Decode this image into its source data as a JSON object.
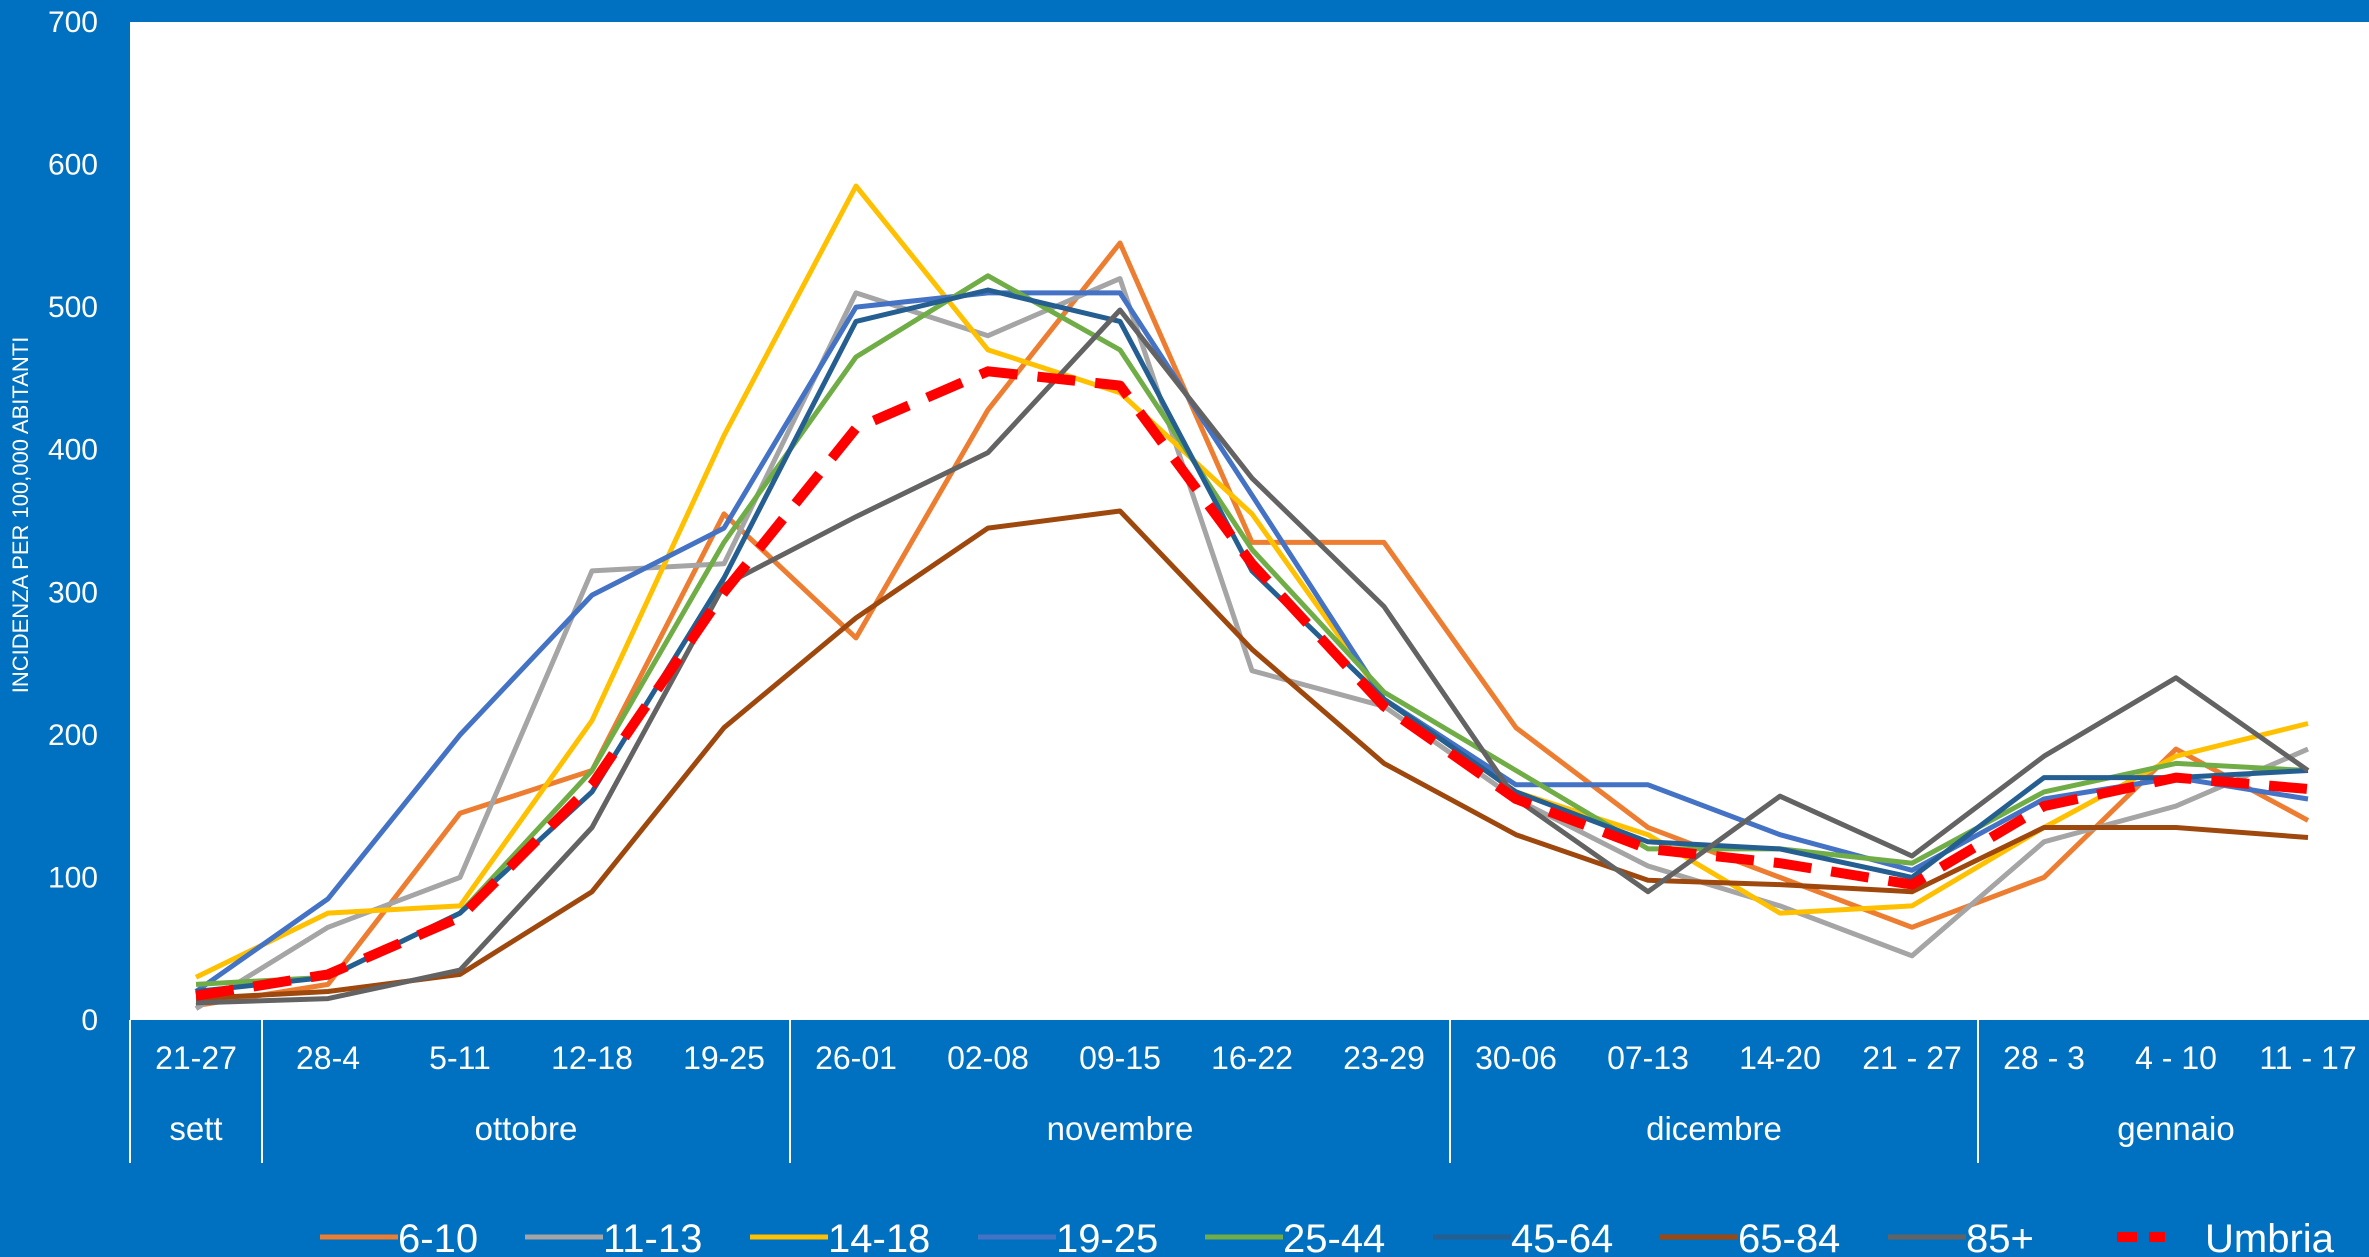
{
  "chart_data": {
    "type": "line",
    "title": "",
    "ylabel": "INCIDENZA PER 100,000 ABITANTI",
    "xlabel": "",
    "ylim": [
      0,
      700
    ],
    "yticks": [
      "0",
      "100",
      "200",
      "300",
      "400",
      "500",
      "600",
      "700"
    ],
    "grid": false,
    "legend_position": "bottom",
    "categories": [
      "21-27",
      "28-4",
      "5-11",
      "12-18",
      "19-25",
      "26-01",
      "02-08",
      "09-15",
      "16-22",
      "23-29",
      "30-06",
      "07-13",
      "14-20",
      "21 - 27",
      "28 - 3",
      "4 - 10",
      "11 - 17"
    ],
    "groups": [
      {
        "label": "sett",
        "start": 0,
        "end": 0
      },
      {
        "label": "ottobre",
        "start": 1,
        "end": 4
      },
      {
        "label": "novembre",
        "start": 5,
        "end": 9
      },
      {
        "label": "dicembre",
        "start": 10,
        "end": 13
      },
      {
        "label": "gennaio",
        "start": 14,
        "end": 16
      }
    ],
    "series": [
      {
        "name": "6-10",
        "color": "#ED7D31",
        "dashed": false,
        "values": [
          10,
          25,
          145,
          175,
          355,
          268,
          428,
          545,
          335,
          335,
          205,
          135,
          100,
          65,
          100,
          190,
          140
        ]
      },
      {
        "name": "11-13",
        "color": "#A5A5A5",
        "dashed": false,
        "values": [
          8,
          65,
          100,
          315,
          320,
          510,
          480,
          520,
          245,
          220,
          155,
          108,
          80,
          45,
          125,
          150,
          190
        ]
      },
      {
        "name": "14-18",
        "color": "#FFC000",
        "dashed": false,
        "values": [
          30,
          75,
          80,
          210,
          410,
          585,
          470,
          440,
          355,
          225,
          160,
          130,
          75,
          80,
          135,
          185,
          208
        ]
      },
      {
        "name": "19-25",
        "color": "#4472C4",
        "dashed": false,
        "values": [
          20,
          85,
          200,
          298,
          345,
          500,
          510,
          510,
          368,
          225,
          165,
          165,
          130,
          105,
          155,
          170,
          155
        ]
      },
      {
        "name": "25-44",
        "color": "#70AD47",
        "dashed": false,
        "values": [
          25,
          30,
          75,
          175,
          335,
          465,
          522,
          470,
          330,
          230,
          175,
          120,
          120,
          110,
          160,
          180,
          175
        ]
      },
      {
        "name": "45-64",
        "color": "#255E91",
        "dashed": false,
        "values": [
          20,
          30,
          75,
          160,
          310,
          490,
          512,
          490,
          315,
          225,
          160,
          125,
          120,
          100,
          170,
          170,
          175
        ]
      },
      {
        "name": "65-84",
        "color": "#9E480E",
        "dashed": false,
        "values": [
          15,
          20,
          32,
          90,
          205,
          282,
          345,
          357,
          260,
          180,
          130,
          98,
          95,
          90,
          135,
          135,
          128
        ]
      },
      {
        "name": "85+",
        "color": "#636363",
        "dashed": false,
        "values": [
          12,
          15,
          35,
          135,
          305,
          353,
          398,
          498,
          380,
          290,
          155,
          90,
          157,
          115,
          185,
          240,
          175
        ]
      },
      {
        "name": "Umbria",
        "color": "#FF0000",
        "dashed": true,
        "values": [
          17,
          32,
          72,
          165,
          300,
          415,
          455,
          445,
          320,
          220,
          155,
          120,
          110,
          95,
          150,
          170,
          162
        ]
      }
    ]
  }
}
